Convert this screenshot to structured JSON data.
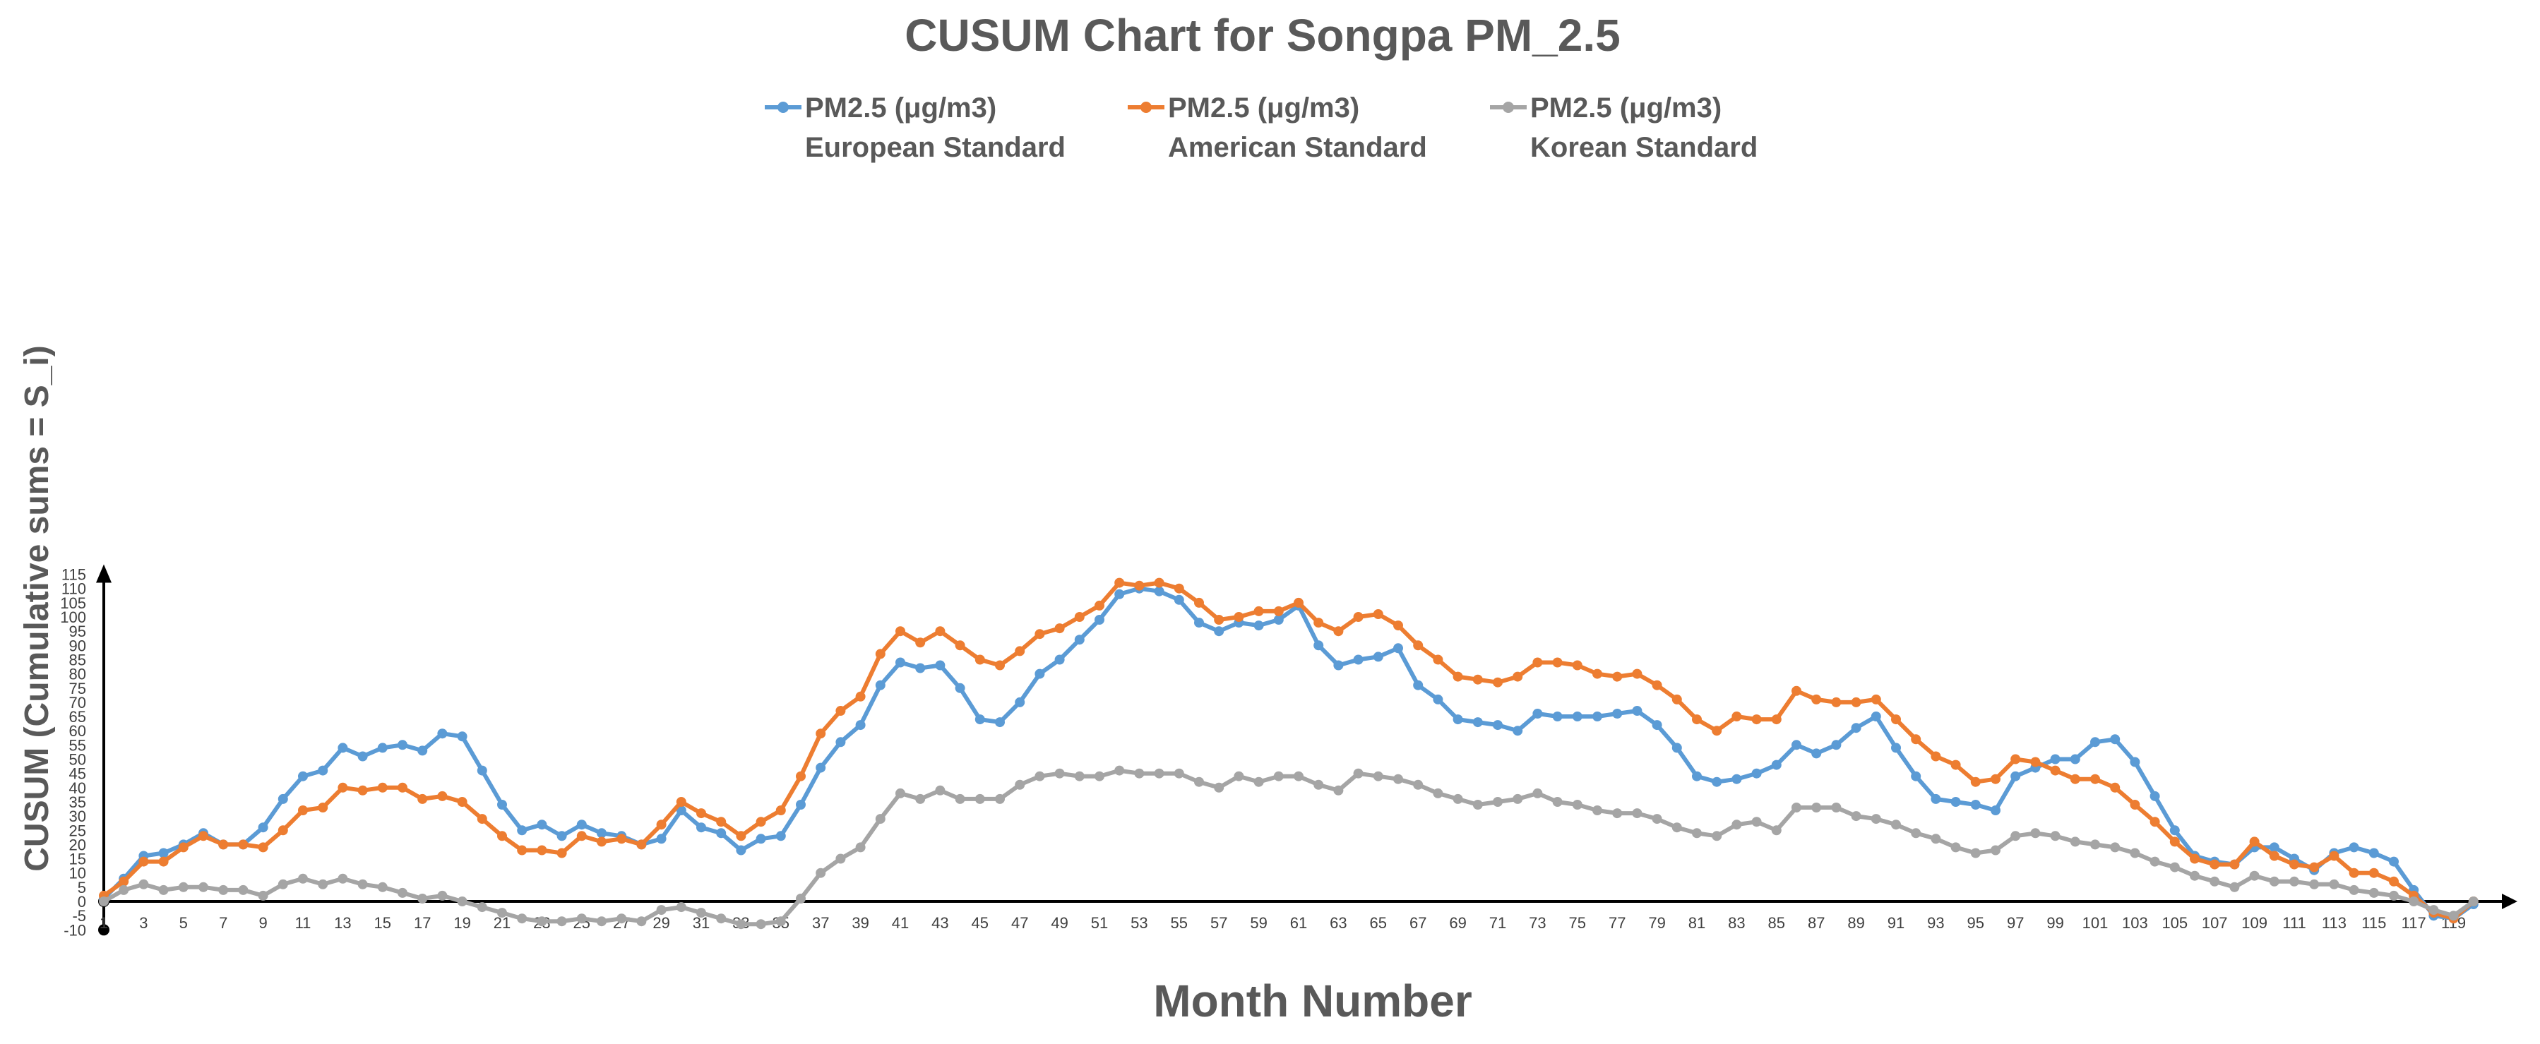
{
  "chart_data": {
    "type": "line",
    "title": "CUSUM Chart for Songpa PM_2.5",
    "xlabel": "Month Number",
    "ylabel": "CUSUM (Cumulative sums = S_i)",
    "ylim": [
      -10,
      115
    ],
    "yticks": [
      115,
      110,
      105,
      100,
      95,
      90,
      85,
      80,
      75,
      70,
      65,
      60,
      55,
      50,
      45,
      40,
      35,
      30,
      25,
      20,
      15,
      10,
      5,
      0,
      -5,
      -10
    ],
    "xlim": [
      1,
      119
    ],
    "xtick_step": 2,
    "legend_position": "top",
    "x": [
      1,
      2,
      3,
      4,
      5,
      6,
      7,
      8,
      9,
      10,
      11,
      12,
      13,
      14,
      15,
      16,
      17,
      18,
      19,
      20,
      21,
      22,
      23,
      24,
      25,
      26,
      27,
      28,
      29,
      30,
      31,
      32,
      33,
      34,
      35,
      36,
      37,
      38,
      39,
      40,
      41,
      42,
      43,
      44,
      45,
      46,
      47,
      48,
      49,
      50,
      51,
      52,
      53,
      54,
      55,
      56,
      57,
      58,
      59,
      60,
      61,
      62,
      63,
      64,
      65,
      66,
      67,
      68,
      69,
      70,
      71,
      72,
      73,
      74,
      75,
      76,
      77,
      78,
      79,
      80,
      81,
      82,
      83,
      84,
      85,
      86,
      87,
      88,
      89,
      90,
      91,
      92,
      93,
      94,
      95,
      96,
      97,
      98,
      99,
      100,
      101,
      102,
      103,
      104,
      105,
      106,
      107,
      108,
      109,
      110,
      111,
      112,
      113,
      114,
      115,
      116,
      117,
      118,
      119,
      120
    ],
    "series": [
      {
        "name": "PM2.5 (μg/m3)",
        "name_line2": "European Standard",
        "color": "#5B9BD5",
        "values": [
          1,
          8,
          16,
          17,
          20,
          24,
          20,
          20,
          26,
          36,
          44,
          46,
          54,
          51,
          54,
          55,
          53,
          59,
          58,
          46,
          34,
          25,
          27,
          23,
          27,
          24,
          23,
          20,
          22,
          32,
          26,
          24,
          18,
          22,
          23,
          34,
          47,
          56,
          62,
          76,
          84,
          82,
          83,
          75,
          64,
          63,
          70,
          80,
          85,
          92,
          99,
          108,
          110,
          109,
          106,
          98,
          95,
          98,
          97,
          99,
          104,
          90,
          83,
          85,
          86,
          89,
          76,
          71,
          64,
          63,
          62,
          60,
          66,
          65,
          65,
          65,
          66,
          67,
          62,
          54,
          44,
          42,
          43,
          45,
          48,
          55,
          52,
          55,
          61,
          65,
          54,
          44,
          36,
          35,
          34,
          32,
          44,
          47,
          50,
          50,
          56,
          57,
          49,
          37,
          25,
          16,
          14,
          13,
          19,
          19,
          15,
          11,
          17,
          19,
          17,
          14,
          4,
          -5,
          -6,
          -1
        ]
      },
      {
        "name": "PM2.5 (μg/m3)",
        "name_line2": "American Standard",
        "color": "#ED7D31",
        "values": [
          2,
          7,
          14,
          14,
          19,
          23,
          20,
          20,
          19,
          25,
          32,
          33,
          40,
          39,
          40,
          40,
          36,
          37,
          35,
          29,
          23,
          18,
          18,
          17,
          23,
          21,
          22,
          20,
          27,
          35,
          31,
          28,
          23,
          28,
          32,
          44,
          59,
          67,
          72,
          87,
          95,
          91,
          95,
          90,
          85,
          83,
          88,
          94,
          96,
          100,
          104,
          112,
          111,
          112,
          110,
          105,
          99,
          100,
          102,
          102,
          105,
          98,
          95,
          100,
          101,
          97,
          90,
          85,
          79,
          78,
          77,
          79,
          84,
          84,
          83,
          80,
          79,
          80,
          76,
          71,
          64,
          60,
          65,
          64,
          64,
          74,
          71,
          70,
          70,
          71,
          64,
          57,
          51,
          48,
          42,
          43,
          50,
          49,
          46,
          43,
          43,
          40,
          34,
          28,
          21,
          15,
          13,
          13,
          21,
          16,
          13,
          12,
          16,
          10,
          10,
          7,
          2,
          -4,
          -6,
          0
        ]
      },
      {
        "name": "PM2.5 (μg/m3)",
        "name_line2": "Korean Standard",
        "color": "#A5A5A5",
        "values": [
          0,
          4,
          6,
          4,
          5,
          5,
          4,
          4,
          2,
          6,
          8,
          6,
          8,
          6,
          5,
          3,
          1,
          2,
          0,
          -2,
          -4,
          -6,
          -7,
          -7,
          -6,
          -7,
          -6,
          -7,
          -3,
          -2,
          -4,
          -6,
          -8,
          -8,
          -7,
          1,
          10,
          15,
          19,
          29,
          38,
          36,
          39,
          36,
          36,
          36,
          41,
          44,
          45,
          44,
          44,
          46,
          45,
          45,
          45,
          42,
          40,
          44,
          42,
          44,
          44,
          41,
          39,
          45,
          44,
          43,
          41,
          38,
          36,
          34,
          35,
          36,
          38,
          35,
          34,
          32,
          31,
          31,
          29,
          26,
          24,
          23,
          27,
          28,
          25,
          33,
          33,
          33,
          30,
          29,
          27,
          24,
          22,
          19,
          17,
          18,
          23,
          24,
          23,
          21,
          20,
          19,
          17,
          14,
          12,
          9,
          7,
          5,
          9,
          7,
          7,
          6,
          6,
          4,
          3,
          2,
          0,
          -3,
          -5,
          0
        ]
      }
    ]
  }
}
